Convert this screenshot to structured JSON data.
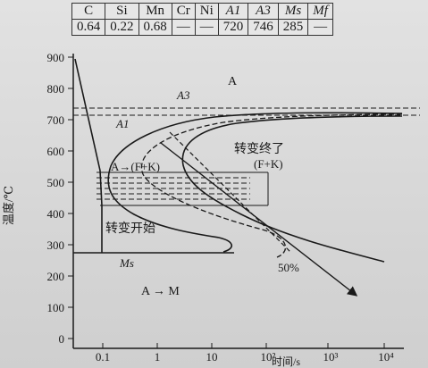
{
  "composition_table": {
    "headers": [
      "C",
      "Si",
      "Mn",
      "Cr",
      "Ni",
      "A1",
      "A3",
      "Ms",
      "Mf"
    ],
    "values": [
      "0.64",
      "0.22",
      "0.68",
      "—",
      "—",
      "720",
      "746",
      "285",
      "—"
    ]
  },
  "axes": {
    "y_label": "温度/℃",
    "x_label": "时间/s",
    "y_ticks": [
      "900",
      "800",
      "700",
      "600",
      "500",
      "400",
      "300",
      "200",
      "100",
      "0"
    ],
    "x_ticks": [
      "0.1",
      "1",
      "10",
      "10²",
      "10³",
      "10⁴"
    ]
  },
  "labels": {
    "austenite": "A",
    "a3": "A3",
    "a1": "A1",
    "transform_end": "转变终了",
    "end_phase": "(F+K)",
    "a_to_fk": "A→(F+K)",
    "transform_start": "转变开始",
    "ms": "Ms",
    "a_to_m": "A → M",
    "fifty_percent": "50%"
  }
}
